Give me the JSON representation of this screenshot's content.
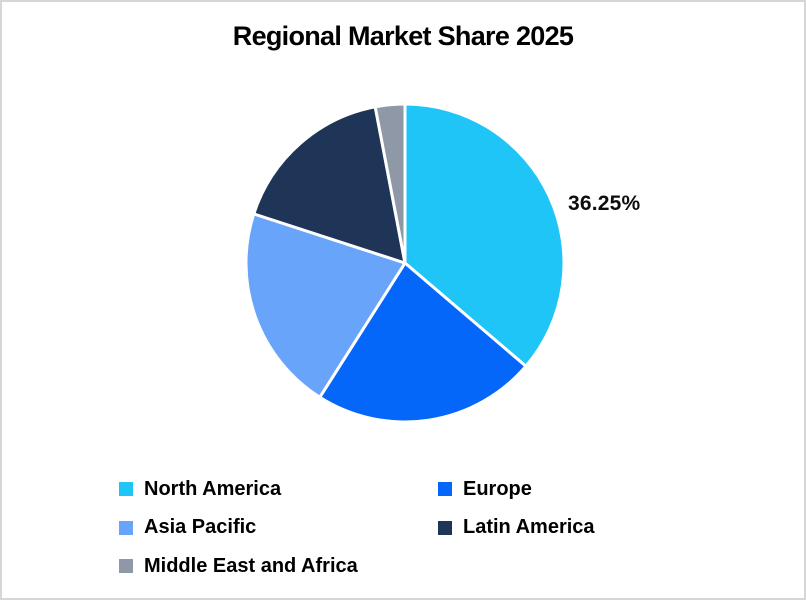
{
  "chart_data": {
    "type": "pie",
    "title": "Regional Market Share 2025",
    "start_angle_deg_from_top": 0,
    "direction": "clockwise",
    "units": "percent",
    "legend_position": "bottom",
    "legend_columns": 2,
    "separator_color": "#ffffff",
    "series": [
      {
        "name": "North America",
        "value": 36.25,
        "color": "#1fc5f7"
      },
      {
        "name": "Europe",
        "value": 22.75,
        "color": "#0566fa"
      },
      {
        "name": "Asia Pacific",
        "value": 21.0,
        "color": "#69a4fb"
      },
      {
        "name": "Latin America",
        "value": 17.0,
        "color": "#1f3557"
      },
      {
        "name": "Middle East and Africa",
        "value": 3.0,
        "color": "#8f98a7"
      }
    ],
    "shown_data_label": {
      "series": "North America",
      "text": "36.25%"
    }
  },
  "page": {
    "background": "#ffffff",
    "border_color": "#d6d6d6"
  }
}
